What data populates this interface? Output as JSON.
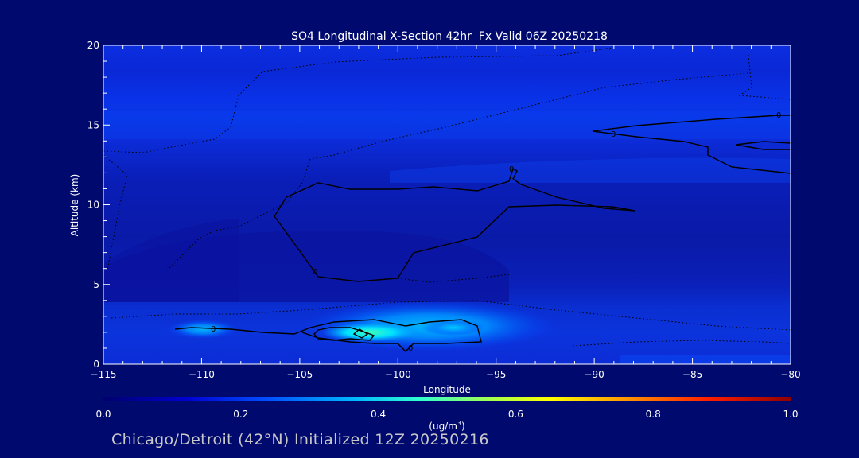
{
  "chart_data": {
    "type": "heatmap",
    "title": "SO4 Longitudinal X-Section 42hr  Fx Valid 06Z 20250218",
    "xlabel": "Longitude",
    "ylabel": "Altitude (km)",
    "xlim": [
      -115,
      -80
    ],
    "ylim": [
      0,
      20
    ],
    "x_ticks": [
      -115,
      -110,
      -105,
      -100,
      -95,
      -90,
      -85,
      -80
    ],
    "x_tick_labels": [
      "-115",
      "-110",
      "-105",
      "-100",
      "-95",
      "-90",
      "-85",
      "-80"
    ],
    "y_ticks": [
      0,
      5,
      10,
      15,
      20
    ],
    "y_tick_labels": [
      "0",
      "5",
      "10",
      "15",
      "20"
    ],
    "colorbar": {
      "min": 0.0,
      "max": 1.0,
      "ticks": [
        0.0,
        0.2,
        0.4,
        0.6,
        0.8,
        1.0
      ],
      "tick_labels": [
        "0.0",
        "0.2",
        "0.4",
        "0.6",
        "0.8",
        "1.0"
      ],
      "unit_label_main": "(ug/m",
      "unit_label_sup": "3",
      "unit_label_end": ")",
      "colors": [
        "#00008c",
        "#0000ff",
        "#0096ff",
        "#00ffff",
        "#64ff96",
        "#ffff00",
        "#ff9600",
        "#ff0000",
        "#8c0000"
      ]
    },
    "layers": [
      {
        "alt_range": [
          0,
          1.5
        ],
        "value": 0.06
      },
      {
        "alt_range": [
          1.5,
          3.5
        ],
        "value": 0.08
      },
      {
        "alt_range": [
          3.5,
          12
        ],
        "value": 0.05
      },
      {
        "alt_range": [
          12,
          13
        ],
        "value": 0.1
      },
      {
        "alt_range": [
          13,
          14.5
        ],
        "value": 0.09
      },
      {
        "alt_range": [
          14.5,
          16
        ],
        "value": 0.12
      },
      {
        "alt_range": [
          16,
          20
        ],
        "value": 0.1
      }
    ],
    "features": [
      {
        "lon_range": [
          -105,
          -94
        ],
        "alt_range": [
          1.2,
          2.8
        ],
        "value": 0.3
      },
      {
        "lon_range": [
          -103,
          -100
        ],
        "alt_range": [
          1.6,
          2.4
        ],
        "value": 0.4
      }
    ],
    "contour_labels": [
      "0",
      "0",
      "0",
      "0",
      "0",
      "0"
    ]
  },
  "footer": "Chicago/Detroit (42°N) Initialized 12Z 20250216"
}
